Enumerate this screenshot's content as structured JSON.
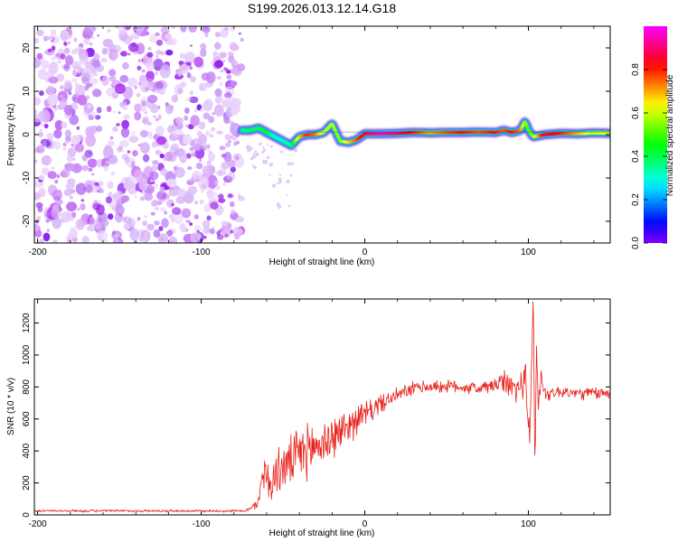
{
  "title": "S199.2026.013.12.14.G18",
  "chart_data": [
    {
      "type": "heatmap",
      "title": "S199.2026.013.12.14.G18",
      "xlabel": "Height of straight line (km)",
      "ylabel": "Frequency (Hz)",
      "xlim": [
        -202,
        150
      ],
      "ylim": [
        -25,
        25
      ],
      "xticks": [
        -200,
        -100,
        0,
        100
      ],
      "yticks": [
        -20,
        -10,
        0,
        10,
        20
      ],
      "x_tick_labels": [
        "-200",
        "-100",
        "0",
        "100"
      ],
      "y_tick_labels": [
        "-20",
        "-10",
        "0",
        "10",
        "20"
      ],
      "noise_region_x": [
        -202,
        -75
      ],
      "ridge": {
        "x": [
          -75,
          -70,
          -65,
          -60,
          -55,
          -50,
          -45,
          -40,
          -35,
          -30,
          -25,
          -20,
          -15,
          -10,
          -5,
          0,
          10,
          20,
          30,
          40,
          50,
          60,
          70,
          80,
          85,
          90,
          95,
          98,
          100,
          103,
          110,
          120,
          130,
          140,
          150
        ],
        "freq": [
          1,
          1,
          1.5,
          0.5,
          -0.5,
          -1.5,
          -2.5,
          -0.5,
          0,
          0,
          0.5,
          2.5,
          -1.5,
          -1.8,
          -1.2,
          0.2,
          0.2,
          0.3,
          0.5,
          0.4,
          0.5,
          0.5,
          0.6,
          0.5,
          1.0,
          0.5,
          1.0,
          3.0,
          1.0,
          -0.5,
          0,
          0.3,
          0.2,
          0.4,
          0.3
        ],
        "amplitude": [
          0.35,
          0.4,
          0.4,
          0.45,
          0.3,
          0.3,
          0.35,
          0.65,
          0.8,
          0.75,
          0.6,
          0.6,
          0.55,
          0.65,
          0.75,
          0.85,
          0.95,
          0.9,
          0.8,
          0.7,
          0.75,
          0.8,
          0.75,
          0.8,
          0.75,
          0.8,
          0.75,
          0.6,
          0.5,
          0.55,
          0.85,
          0.8,
          0.7,
          0.6,
          0.65
        ]
      },
      "colorbar": {
        "label": "Normalized spectral amplitude",
        "range": [
          0,
          1
        ],
        "ticks": [
          "0.0",
          "0.2",
          "0.4",
          "0.6",
          "0.8"
        ],
        "tick_values": [
          0,
          0.2,
          0.4,
          0.6,
          0.8
        ],
        "colormap": "hsv"
      }
    },
    {
      "type": "line",
      "xlabel": "Height of straight line (km)",
      "ylabel": "SNR (10 * v/v)",
      "xlim": [
        -202,
        150
      ],
      "ylim": [
        0,
        1350
      ],
      "xticks": [
        -200,
        -100,
        0,
        100
      ],
      "yticks": [
        0,
        200,
        400,
        600,
        800,
        1000,
        1200
      ],
      "x_tick_labels": [
        "-200",
        "-100",
        "0",
        "100"
      ],
      "y_tick_labels": [
        "0",
        "200",
        "400",
        "600",
        "800",
        "1000",
        "1200"
      ],
      "line_color": "#e8201a",
      "series": [
        {
          "name": "SNR",
          "x": [
            -202,
            -150,
            -100,
            -75,
            -70,
            -65,
            -62,
            -58,
            -55,
            -50,
            -45,
            -40,
            -35,
            -30,
            -25,
            -20,
            -15,
            -10,
            -5,
            0,
            5,
            10,
            15,
            20,
            25,
            30,
            35,
            40,
            50,
            60,
            70,
            80,
            85,
            90,
            95,
            98,
            100,
            101,
            103,
            104,
            105,
            106,
            108,
            110,
            120,
            130,
            140,
            150
          ],
          "y": [
            25,
            25,
            25,
            25,
            35,
            80,
            300,
            180,
            250,
            300,
            330,
            380,
            400,
            430,
            450,
            480,
            520,
            560,
            600,
            630,
            660,
            700,
            720,
            750,
            770,
            790,
            800,
            800,
            805,
            800,
            790,
            810,
            830,
            800,
            780,
            900,
            600,
            500,
            1350,
            250,
            1100,
            700,
            850,
            760,
            770,
            760,
            760,
            760
          ],
          "noise": [
            8,
            8,
            8,
            8,
            15,
            40,
            120,
            130,
            140,
            150,
            160,
            170,
            170,
            160,
            150,
            140,
            120,
            110,
            100,
            80,
            70,
            60,
            50,
            45,
            45,
            45,
            40,
            40,
            40,
            40,
            40,
            50,
            70,
            90,
            100,
            110,
            120,
            120,
            80,
            60,
            100,
            90,
            80,
            45,
            40,
            40,
            40,
            40
          ]
        }
      ]
    }
  ]
}
